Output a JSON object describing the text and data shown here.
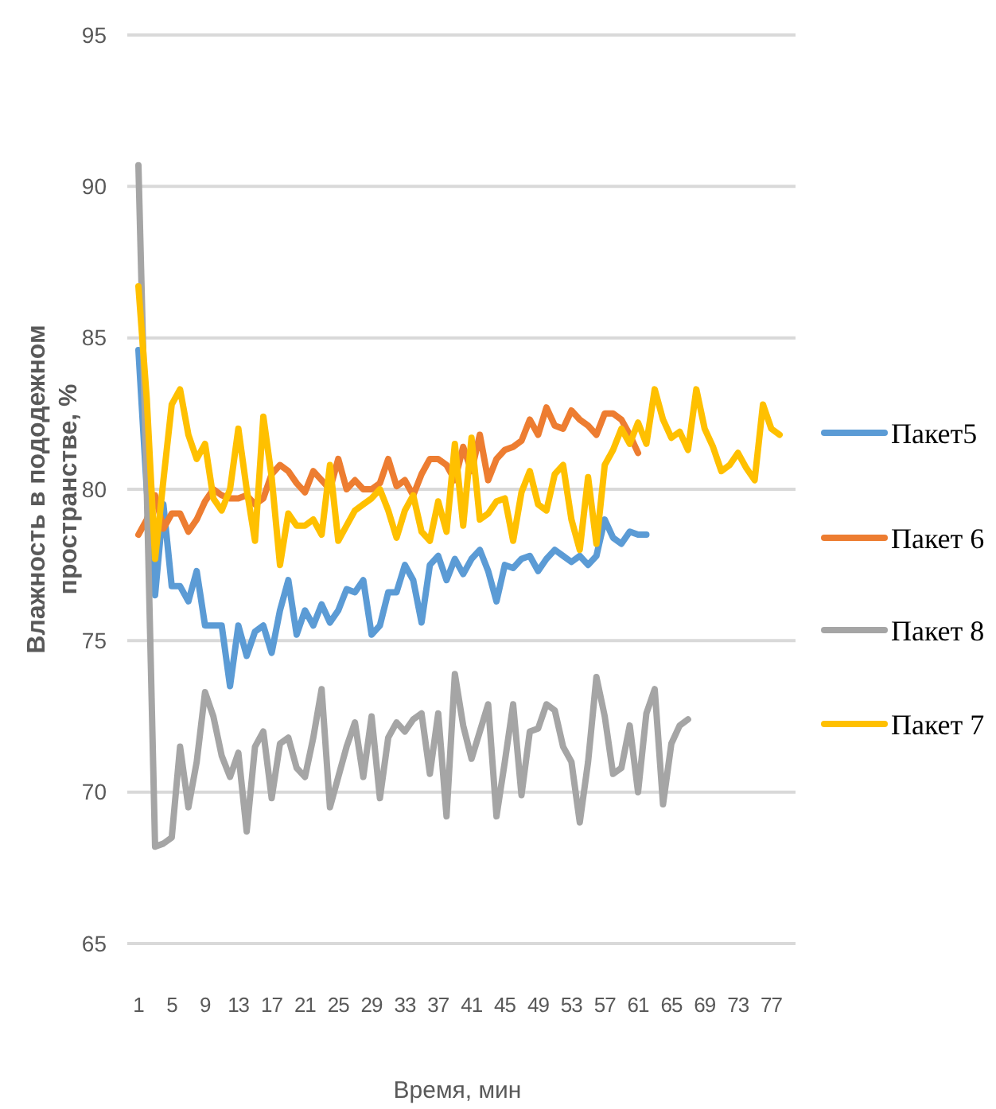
{
  "chart_data": {
    "type": "line",
    "xlabel": "Время, мин",
    "ylabel": "Влажность в пододежном пространстве, %",
    "categories": [
      "1",
      null,
      null,
      null,
      "5",
      null,
      null,
      null,
      "9",
      null,
      null,
      null,
      "13",
      null,
      null,
      null,
      "17",
      null,
      null,
      null,
      "21",
      null,
      null,
      null,
      "25",
      null,
      null,
      null,
      "29",
      null,
      null,
      null,
      "33",
      null,
      null,
      null,
      "37",
      null,
      null,
      null,
      "41",
      null,
      null,
      null,
      "45",
      null,
      null,
      null,
      "49",
      null,
      null,
      null,
      "53",
      null,
      null,
      null,
      "57",
      null,
      null,
      null,
      "61",
      null,
      null,
      null,
      "65",
      null,
      null,
      null,
      "69",
      null,
      null,
      null,
      "73",
      null,
      null,
      null,
      "77",
      null
    ],
    "ylim": [
      65,
      95
    ],
    "yticks": [
      65,
      70,
      75,
      80,
      85,
      90,
      95
    ],
    "grid": "y",
    "legend": "right",
    "line_style": "solid",
    "marker": "none",
    "series": [
      {
        "name": "Пакет5",
        "color": "#5b9bd5",
        "values": [
          84.6,
          80,
          76.5,
          79.5,
          76.8,
          76.8,
          76.3,
          77.3,
          75.5,
          75.5,
          75.5,
          73.5,
          75.5,
          74.5,
          75.3,
          75.5,
          74.6,
          76,
          77,
          75.2,
          76,
          75.5,
          76.2,
          75.6,
          76,
          76.7,
          76.6,
          77,
          75.2,
          75.5,
          76.6,
          76.6,
          77.5,
          77,
          75.6,
          77.5,
          77.8,
          77,
          77.7,
          77.2,
          77.7,
          78,
          77.3,
          76.3,
          77.5,
          77.4,
          77.7,
          77.8,
          77.3,
          77.7,
          78,
          77.8,
          77.6,
          77.8,
          77.5,
          77.8,
          79,
          78.4,
          78.2,
          78.6,
          78.5,
          78.5,
          null,
          null,
          null,
          null,
          null,
          null,
          null,
          null,
          null,
          null,
          null,
          null,
          null,
          null,
          null,
          null
        ]
      },
      {
        "name": "Пакет 6",
        "color": "#ed7d31",
        "values": [
          78.5,
          79,
          79.8,
          78.7,
          79.2,
          79.2,
          78.6,
          79,
          79.6,
          80,
          79.8,
          79.7,
          79.7,
          79.8,
          79.5,
          79.7,
          80.5,
          80.8,
          80.6,
          80.2,
          79.9,
          80.6,
          80.3,
          80,
          81,
          80,
          80.3,
          80,
          80,
          80.2,
          81,
          80.1,
          80.3,
          79.8,
          80.5,
          81,
          81,
          80.8,
          80.3,
          81.4,
          80.6,
          81.8,
          80.3,
          81,
          81.3,
          81.4,
          81.6,
          82.3,
          81.8,
          82.7,
          82.1,
          82,
          82.6,
          82.3,
          82.1,
          81.8,
          82.5,
          82.5,
          82.3,
          81.8,
          81.2,
          null,
          null,
          null,
          null,
          null,
          null,
          null,
          null,
          null,
          null,
          null,
          null,
          null,
          null,
          null,
          null,
          null
        ]
      },
      {
        "name": "Пакет 8",
        "color": "#a5a5a5",
        "values": [
          90.7,
          80,
          68.2,
          68.3,
          68.5,
          71.5,
          69.5,
          71,
          73.3,
          72.5,
          71.2,
          70.5,
          71.3,
          68.7,
          71.5,
          72,
          69.8,
          71.6,
          71.8,
          70.8,
          70.5,
          71.8,
          73.4,
          69.5,
          70.5,
          71.5,
          72.3,
          70.5,
          72.5,
          69.8,
          71.8,
          72.3,
          72,
          72.4,
          72.6,
          70.6,
          72.6,
          69.2,
          73.9,
          72.2,
          71.1,
          72,
          72.9,
          69.2,
          71,
          72.9,
          69.9,
          72,
          72.1,
          72.9,
          72.7,
          71.5,
          71,
          69,
          71,
          73.8,
          72.5,
          70.6,
          70.8,
          72.2,
          70,
          72.6,
          73.4,
          69.6,
          71.6,
          72.2,
          72.4,
          null,
          null,
          null,
          null,
          null,
          null,
          null,
          null,
          null,
          null,
          null
        ]
      },
      {
        "name": "Пакет 7",
        "color": "#ffc000",
        "values": [
          86.7,
          83,
          77.7,
          80.3,
          82.8,
          83.3,
          81.8,
          81,
          81.5,
          79.7,
          79.3,
          80,
          82,
          80,
          78.3,
          82.4,
          80.4,
          77.5,
          79.2,
          78.8,
          78.8,
          79,
          78.5,
          80.8,
          78.3,
          78.8,
          79.3,
          79.5,
          79.7,
          80,
          79.3,
          78.4,
          79.3,
          79.8,
          78.6,
          78.3,
          79.6,
          78.6,
          81.5,
          78.8,
          81.7,
          79,
          79.2,
          79.6,
          79.7,
          78.3,
          79.9,
          80.6,
          79.5,
          79.3,
          80.5,
          80.8,
          79,
          78,
          80.4,
          78.2,
          80.8,
          81.3,
          82,
          81.5,
          82.2,
          81.5,
          83.3,
          82.3,
          81.7,
          81.9,
          81.3,
          83.3,
          82,
          81.4,
          80.6,
          80.8,
          81.2,
          80.7,
          80.3,
          82.8,
          82,
          81.8
        ]
      }
    ]
  }
}
